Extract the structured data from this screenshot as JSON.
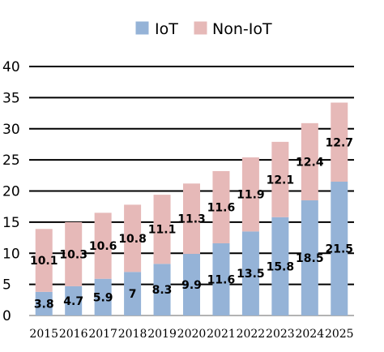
{
  "chart_data": {
    "type": "bar",
    "stacked": true,
    "categories": [
      "2015",
      "2016",
      "2017",
      "2018",
      "2019",
      "2020",
      "2021",
      "2022",
      "2023",
      "2024",
      "2025"
    ],
    "series": [
      {
        "name": "IoT",
        "color": "#95b3d7",
        "values": [
          3.8,
          4.7,
          5.9,
          7,
          8.3,
          9.9,
          11.6,
          13.5,
          15.8,
          18.5,
          21.5
        ],
        "labels": [
          "3.8",
          "4.7",
          "5.9",
          "7",
          "8.3",
          "9.9",
          "11.6",
          "13.5",
          "15.8",
          "18.5",
          "21.5"
        ]
      },
      {
        "name": "Non-IoT",
        "color": "#e6b9b8",
        "values": [
          10.1,
          10.3,
          10.6,
          10.8,
          11.1,
          11.3,
          11.6,
          11.9,
          12.1,
          12.4,
          12.7
        ],
        "labels": [
          "10.1",
          "10.3",
          "10.6",
          "10.8",
          "11.1",
          "11.3",
          "11.6",
          "11.9",
          "12.1",
          "12.4",
          "12.7"
        ]
      }
    ],
    "yticks": [
      "0",
      "5",
      "10",
      "15",
      "20",
      "25",
      "30",
      "35",
      "40"
    ],
    "ylim": [
      0,
      40
    ],
    "grid": true,
    "legend": "top-center"
  }
}
